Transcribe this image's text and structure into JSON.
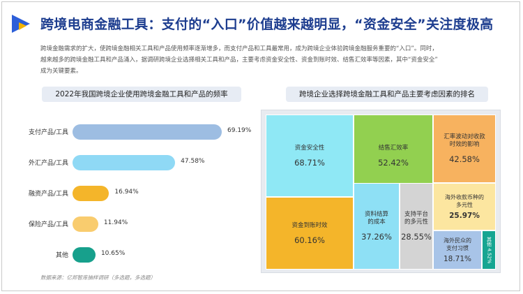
{
  "header": {
    "title": "跨境电商金融工具：支付的“入口”价值越来越明显，“资金安全”关注度极高",
    "intro_lines": [
      "跨境金融需求的扩大，使跨境金融相关工具和产品使用频率逐渐增多，而支付产品和工具最常用，成为跨境企业体验跨境金融服务重要的“入口”。同时，",
      "越来越多的跨境金融工具和产品涌入，据调研跨境企业选择相关工具和产品，主要考虑资金安全性、资金到账时效、结售汇效率等因素，其中“资金安全”",
      "成为关键要素。"
    ],
    "logo_colors": {
      "blue": "#2d5fd9",
      "yellow": "#f5b400"
    }
  },
  "left_panel": {
    "label": "2022年我国跨境企业使用跨境金融工具和产品的频率"
  },
  "right_panel": {
    "label": "跨境企业选择跨境金融工具和产品主要考虑因素的排名"
  },
  "source": "数据来源：亿邦智库抽样调研（多选题，多选题）",
  "chart_data": [
    {
      "type": "bar",
      "orientation": "horizontal",
      "categories": [
        "支付产品/工具",
        "外汇产品/工具",
        "融资产品/工具",
        "保险产品/工具",
        "其他"
      ],
      "values": [
        69.19,
        47.58,
        16.94,
        11.94,
        10.65
      ],
      "value_labels": [
        "69.19%",
        "47.58%",
        "16.94%",
        "11.94%",
        "10.65%"
      ],
      "colors": [
        "#9dbde2",
        "#8fd9f5",
        "#f4b52a",
        "#f9cc6e",
        "#17a08c"
      ]
    },
    {
      "type": "treemap",
      "items": [
        {
          "name": "资金安全性",
          "value": 68.71,
          "label": "68.71%",
          "color": "#8fe8f5"
        },
        {
          "name": "资金到账时效",
          "value": 60.16,
          "label": "60.16%",
          "color": "#f4b52a"
        },
        {
          "name": "结售汇效率",
          "value": 52.42,
          "label": "52.42%",
          "color": "#92d050"
        },
        {
          "name": "汇率波动对收款\n时效的影响",
          "value": 42.58,
          "label": "42.58%",
          "color": "#f7b25f"
        },
        {
          "name": "资料结算\n的成本",
          "value": 37.26,
          "label": "37.26%",
          "color": "#8ee0f5"
        },
        {
          "name": "支持平台\n的多元性",
          "value": 28.55,
          "label": "28.55%",
          "color": "#d4d4d4"
        },
        {
          "name": "海外收款币种的\n多元性",
          "value": 25.97,
          "label": "25.97%",
          "color": "#fce6a0"
        },
        {
          "name": "海外民众的\n支付习惯",
          "value": 18.71,
          "label": "18.71%",
          "color": "#a8c4e8"
        },
        {
          "name": "其他",
          "value": 4.52,
          "label": "4.52%",
          "color": "#15a592"
        }
      ]
    }
  ]
}
